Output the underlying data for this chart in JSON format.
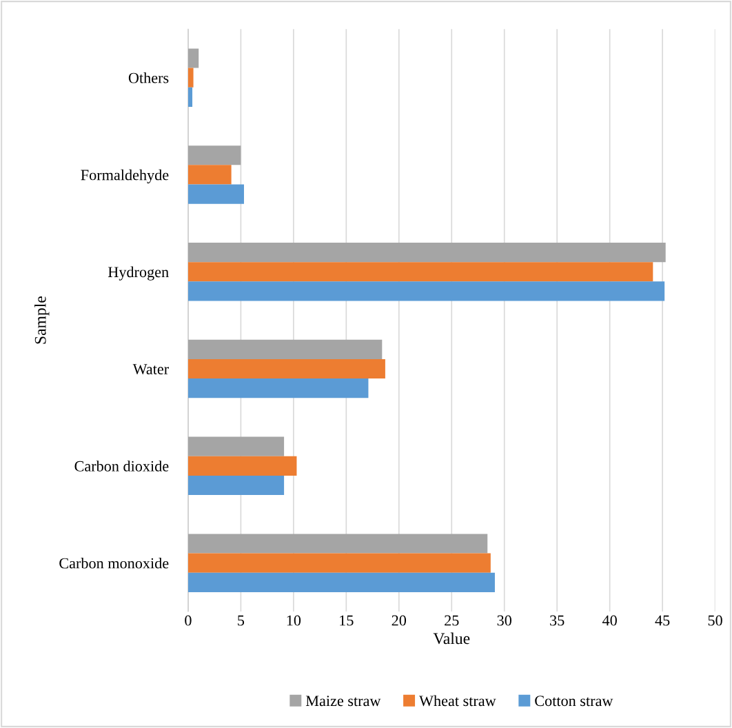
{
  "chart_data": {
    "type": "bar",
    "orientation": "horizontal",
    "xlabel": "Value",
    "ylabel": "Sample",
    "categories": [
      "Others",
      "Formaldehyde",
      "Hydrogen",
      "Water",
      "Carbon dioxide",
      "Carbon monoxide"
    ],
    "series": [
      {
        "name": "Maize straw",
        "color": "#a5a5a5",
        "values": [
          1.0,
          5.0,
          45.3,
          18.4,
          9.1,
          28.4
        ]
      },
      {
        "name": "Wheat straw",
        "color": "#ed7d31",
        "values": [
          0.5,
          4.1,
          44.1,
          18.7,
          10.3,
          28.7
        ]
      },
      {
        "name": "Cotton straw",
        "color": "#5b9bd5",
        "values": [
          0.4,
          5.3,
          45.2,
          17.1,
          9.1,
          29.1
        ]
      }
    ],
    "xlim": [
      0,
      50
    ],
    "xticks": [
      0,
      5,
      10,
      15,
      20,
      25,
      30,
      35,
      40,
      45,
      50
    ],
    "grid": "x",
    "legend": "bottom"
  }
}
